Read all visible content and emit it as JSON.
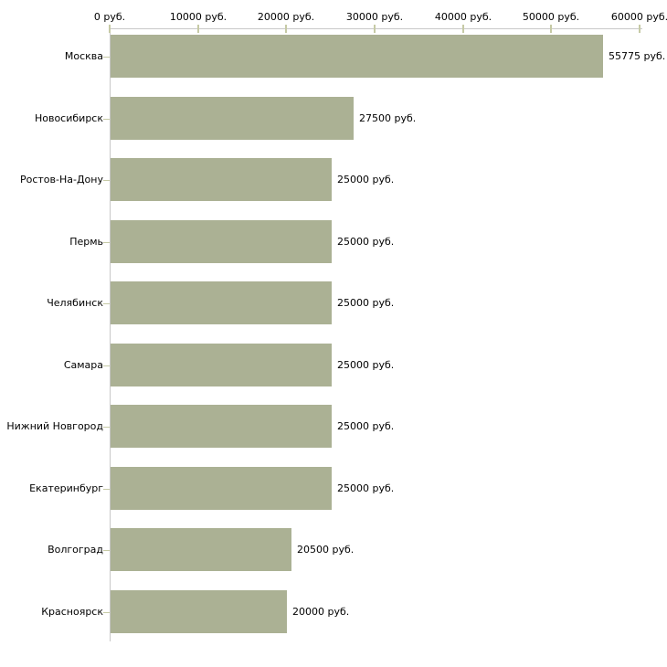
{
  "chart_data": {
    "type": "bar",
    "orientation": "horizontal",
    "categories": [
      "Москва",
      "Новосибирск",
      "Ростов-На-Дону",
      "Пермь",
      "Челябинск",
      "Самара",
      "Нижний Новгород",
      "Екатеринбург",
      "Волгоград",
      "Красноярск"
    ],
    "values": [
      55775,
      27500,
      25000,
      25000,
      25000,
      25000,
      25000,
      25000,
      20500,
      20000
    ],
    "value_labels": [
      "55775 руб.",
      "27500 руб.",
      "25000 руб.",
      "25000 руб.",
      "25000 руб.",
      "25000 руб.",
      "25000 руб.",
      "25000 руб.",
      "20500 руб.",
      "20000 руб."
    ],
    "x_ticks": [
      0,
      10000,
      20000,
      30000,
      40000,
      50000,
      60000
    ],
    "x_tick_labels": [
      "0 руб.",
      "10000 руб.",
      "20000 руб.",
      "30000 руб.",
      "40000 руб.",
      "50000 руб.",
      "60000 руб."
    ],
    "xlim": [
      0,
      60000
    ],
    "xlabel": "",
    "ylabel": "",
    "title": "",
    "legend": null,
    "grid": false,
    "axis_position": "top",
    "colors": {
      "bar_fill": "#abb194",
      "axis_line": "#c8c8c8",
      "tick_mark": "#c6caa5",
      "text": "#000000",
      "background": "#ffffff"
    }
  }
}
